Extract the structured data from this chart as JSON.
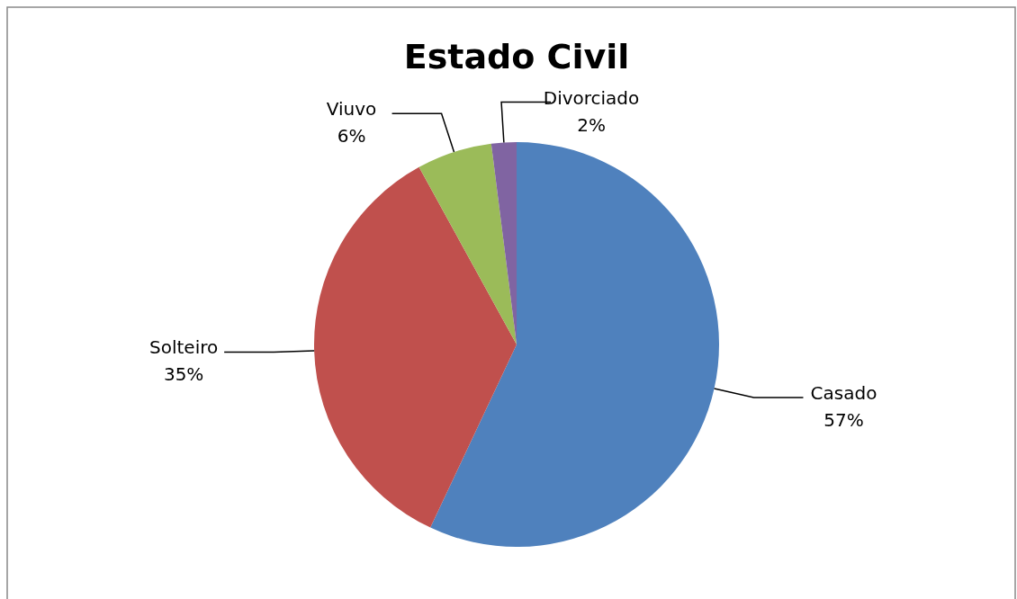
{
  "chart_data": {
    "type": "pie",
    "title": "Estado Civil",
    "categories": [
      "Casado",
      "Solteiro",
      "Viuvo",
      "Divorciado"
    ],
    "values": [
      57,
      35,
      6,
      2
    ],
    "value_labels": [
      "57%",
      "35%",
      "6%",
      "2%"
    ],
    "colors": [
      "#4f81bd",
      "#c0504d",
      "#9bbb59",
      "#8064a2"
    ],
    "legend": false
  }
}
